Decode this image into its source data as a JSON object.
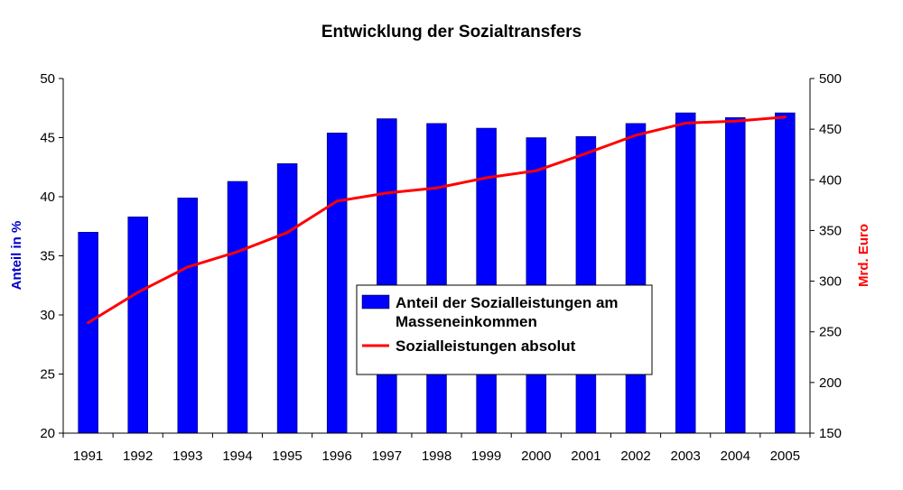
{
  "chart_data": {
    "type": "bar",
    "title": "Entwicklung der Sozialtransfers",
    "categories": [
      "1991",
      "1992",
      "1993",
      "1994",
      "1995",
      "1996",
      "1997",
      "1998",
      "1999",
      "2000",
      "2001",
      "2002",
      "2003",
      "2004",
      "2005"
    ],
    "series": [
      {
        "name": "Anteil der Sozialleistungen am Masseneinkommen",
        "type": "bar",
        "axis": "left",
        "color": "#0000ff",
        "values": [
          37.0,
          38.3,
          39.9,
          41.3,
          42.8,
          45.4,
          46.6,
          46.2,
          45.8,
          45.0,
          45.1,
          46.2,
          47.1,
          46.7,
          47.1
        ]
      },
      {
        "name": "Sozialleistungen absolut",
        "type": "line",
        "axis": "right",
        "color": "#ff0000",
        "values": [
          259,
          289,
          314,
          329,
          348,
          379,
          387,
          392,
          402,
          409,
          426,
          444,
          456,
          458,
          462
        ]
      }
    ],
    "legend_lines": {
      "bars": [
        "Anteil der Sozialleistungen am",
        "Masseneinkommen"
      ],
      "line": [
        "Sozialleistungen absolut"
      ]
    },
    "y_left": {
      "label": "Anteil in %",
      "label_color": "#0000cc",
      "range": [
        20,
        50
      ],
      "ticks": [
        20,
        25,
        30,
        35,
        40,
        45,
        50
      ]
    },
    "y_right": {
      "label": "Mrd. Euro",
      "label_color": "#ff0000",
      "range": [
        150,
        500
      ],
      "ticks": [
        150,
        200,
        250,
        300,
        350,
        400,
        450,
        500
      ]
    },
    "grid": false,
    "legend_position": "center"
  }
}
